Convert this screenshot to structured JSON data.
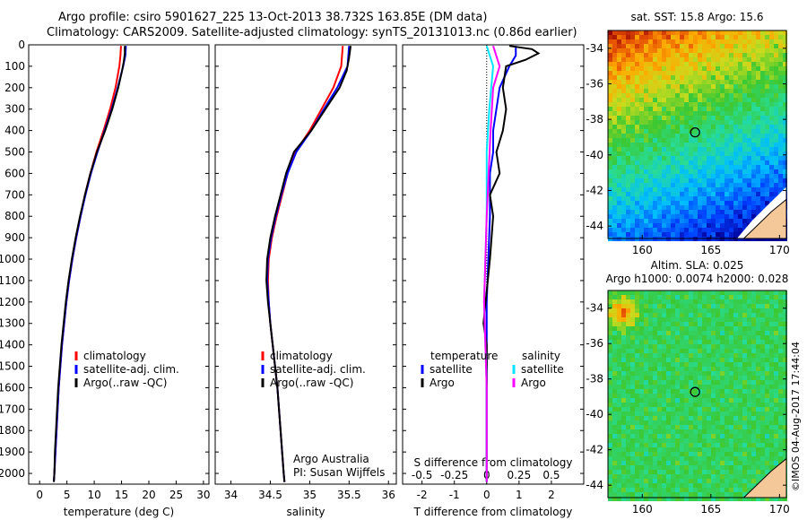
{
  "header": {
    "line1": "Argo profile: csiro 5901627_225 13-Oct-2013 38.732S 163.85E (DM data)",
    "line2": "Climatology: CARS2009. Satellite-adjusted climatology: synTS_20131013.nc (0.86d earlier)"
  },
  "credit": "©IMOS 04-Aug-2017 17:44:04",
  "colors": {
    "climatology": "#ff0000",
    "satellite": "#0000ff",
    "argo": "#000000",
    "sat_salinity": "#00e5ff",
    "argo_salinity": "#ff00ff",
    "land": "#f5c89a"
  },
  "chart_data": [
    {
      "type": "line",
      "panel": "temperature",
      "xlabel": "temperature (deg C)",
      "ylim": [
        2050,
        0
      ],
      "xlim": [
        -2,
        31
      ],
      "yticks": [
        0,
        100,
        200,
        300,
        400,
        500,
        600,
        700,
        800,
        900,
        1000,
        1100,
        1200,
        1300,
        1400,
        1500,
        1600,
        1700,
        1800,
        1900,
        2000
      ],
      "xticks": [
        0,
        5,
        10,
        15,
        20,
        25,
        30
      ],
      "legend": [
        "climatology",
        "satellite-adj. clim.",
        "Argo(..raw -QC)"
      ],
      "series": [
        {
          "name": "climatology",
          "points": [
            [
              14.9,
              5
            ],
            [
              14.8,
              50
            ],
            [
              14.6,
              100
            ],
            [
              13.9,
              200
            ],
            [
              12.9,
              300
            ],
            [
              11.7,
              400
            ],
            [
              10.4,
              500
            ],
            [
              9.3,
              600
            ],
            [
              8.3,
              700
            ],
            [
              7.5,
              800
            ],
            [
              6.7,
              900
            ],
            [
              6.0,
              1000
            ],
            [
              5.4,
              1100
            ],
            [
              4.9,
              1200
            ],
            [
              4.5,
              1300
            ],
            [
              4.1,
              1400
            ],
            [
              3.8,
              1500
            ],
            [
              3.5,
              1600
            ],
            [
              3.3,
              1700
            ],
            [
              3.1,
              1800
            ],
            [
              2.9,
              1900
            ],
            [
              2.7,
              2000
            ],
            [
              2.6,
              2040
            ]
          ]
        },
        {
          "name": "satellite-adj. clim.",
          "points": [
            [
              15.8,
              5
            ],
            [
              15.7,
              50
            ],
            [
              15.3,
              100
            ],
            [
              14.3,
              200
            ],
            [
              13.2,
              300
            ],
            [
              11.9,
              400
            ],
            [
              10.6,
              500
            ],
            [
              9.4,
              600
            ],
            [
              8.4,
              700
            ],
            [
              7.5,
              800
            ],
            [
              6.7,
              900
            ],
            [
              6.0,
              1000
            ],
            [
              5.4,
              1100
            ],
            [
              4.9,
              1200
            ],
            [
              4.5,
              1300
            ],
            [
              4.1,
              1400
            ],
            [
              3.8,
              1500
            ],
            [
              3.5,
              1600
            ],
            [
              3.3,
              1700
            ],
            [
              3.1,
              1800
            ],
            [
              2.9,
              1900
            ],
            [
              2.7,
              2000
            ],
            [
              2.6,
              2040
            ]
          ]
        },
        {
          "name": "Argo(..raw -QC)",
          "points": [
            [
              15.6,
              5
            ],
            [
              15.6,
              40
            ],
            [
              15.4,
              80
            ],
            [
              15.1,
              120
            ],
            [
              14.4,
              200
            ],
            [
              13.3,
              300
            ],
            [
              12.0,
              400
            ],
            [
              10.5,
              500
            ],
            [
              9.3,
              600
            ],
            [
              8.3,
              700
            ],
            [
              7.4,
              800
            ],
            [
              6.6,
              900
            ],
            [
              5.9,
              1000
            ],
            [
              5.3,
              1100
            ],
            [
              4.8,
              1200
            ],
            [
              4.4,
              1300
            ],
            [
              4.0,
              1400
            ],
            [
              3.7,
              1500
            ],
            [
              3.4,
              1600
            ],
            [
              3.2,
              1700
            ],
            [
              3.0,
              1800
            ],
            [
              2.8,
              1900
            ],
            [
              2.7,
              2000
            ],
            [
              2.6,
              2040
            ]
          ]
        }
      ]
    },
    {
      "type": "line",
      "panel": "salinity",
      "xlabel": "salinity",
      "ylim": [
        2050,
        0
      ],
      "xlim": [
        33.8,
        36.1
      ],
      "xticks": [
        34,
        34.5,
        35,
        35.5,
        36
      ],
      "legend": [
        "climatology",
        "satellite-adj. clim.",
        "Argo(..raw -QC)"
      ],
      "annotation": [
        "Argo Australia",
        "PI: Susan Wijffels"
      ],
      "series": [
        {
          "name": "climatology",
          "points": [
            [
              35.42,
              5
            ],
            [
              35.4,
              100
            ],
            [
              35.3,
              200
            ],
            [
              35.15,
              300
            ],
            [
              35.0,
              400
            ],
            [
              34.82,
              500
            ],
            [
              34.72,
              600
            ],
            [
              34.65,
              700
            ],
            [
              34.58,
              800
            ],
            [
              34.52,
              900
            ],
            [
              34.48,
              1000
            ],
            [
              34.47,
              1100
            ],
            [
              34.48,
              1200
            ],
            [
              34.5,
              1300
            ],
            [
              34.53,
              1400
            ],
            [
              34.56,
              1500
            ],
            [
              34.59,
              1600
            ],
            [
              34.61,
              1700
            ],
            [
              34.63,
              1800
            ],
            [
              34.65,
              1900
            ],
            [
              34.67,
              2000
            ],
            [
              34.68,
              2040
            ]
          ]
        },
        {
          "name": "satellite-adj. clim.",
          "points": [
            [
              35.5,
              5
            ],
            [
              35.48,
              100
            ],
            [
              35.35,
              200
            ],
            [
              35.18,
              300
            ],
            [
              35.02,
              400
            ],
            [
              34.83,
              500
            ],
            [
              34.72,
              600
            ],
            [
              34.64,
              700
            ],
            [
              34.57,
              800
            ],
            [
              34.51,
              900
            ],
            [
              34.47,
              1000
            ],
            [
              34.46,
              1100
            ],
            [
              34.48,
              1200
            ],
            [
              34.5,
              1300
            ],
            [
              34.53,
              1400
            ],
            [
              34.56,
              1500
            ],
            [
              34.59,
              1600
            ],
            [
              34.61,
              1700
            ],
            [
              34.63,
              1800
            ],
            [
              34.65,
              1900
            ],
            [
              34.67,
              2000
            ],
            [
              34.68,
              2040
            ]
          ]
        },
        {
          "name": "Argo(..raw -QC)",
          "points": [
            [
              35.52,
              5
            ],
            [
              35.5,
              60
            ],
            [
              35.47,
              120
            ],
            [
              35.38,
              200
            ],
            [
              35.2,
              300
            ],
            [
              35.02,
              400
            ],
            [
              34.8,
              500
            ],
            [
              34.7,
              600
            ],
            [
              34.63,
              700
            ],
            [
              34.56,
              800
            ],
            [
              34.5,
              900
            ],
            [
              34.46,
              1000
            ],
            [
              34.45,
              1100
            ],
            [
              34.47,
              1200
            ],
            [
              34.5,
              1300
            ],
            [
              34.53,
              1400
            ],
            [
              34.56,
              1500
            ],
            [
              34.59,
              1600
            ],
            [
              34.61,
              1700
            ],
            [
              34.63,
              1800
            ],
            [
              34.65,
              1900
            ],
            [
              34.67,
              2000
            ],
            [
              34.68,
              2040
            ]
          ]
        }
      ]
    },
    {
      "type": "line",
      "panel": "difference",
      "xlabel": "T difference from climatology",
      "xlabel2": "S difference from climatology",
      "xlim": [
        -2.6,
        3.0
      ],
      "xticks": [
        -2,
        -1,
        0,
        1,
        2
      ],
      "s_ticks": [
        "-0.5",
        "-0.25",
        "0",
        "0.25",
        "0.5"
      ],
      "ylim": [
        2050,
        0
      ],
      "legend": {
        "temperature_title": "temperature",
        "salinity_title": "salinity",
        "satellite": "satellite",
        "argo": "Argo"
      },
      "series": [
        {
          "name": "temperature satellite",
          "points": [
            [
              0.9,
              5
            ],
            [
              0.9,
              50
            ],
            [
              0.7,
              100
            ],
            [
              0.4,
              200
            ],
            [
              0.3,
              300
            ],
            [
              0.2,
              400
            ],
            [
              0.2,
              500
            ],
            [
              0.1,
              600
            ],
            [
              0.1,
              800
            ],
            [
              0.05,
              1000
            ],
            [
              0.0,
              1200
            ],
            [
              0.0,
              1400
            ],
            [
              0.0,
              1700
            ],
            [
              0.0,
              2040
            ]
          ]
        },
        {
          "name": "temperature Argo",
          "points": [
            [
              0.7,
              5
            ],
            [
              1.4,
              20
            ],
            [
              1.6,
              40
            ],
            [
              1.2,
              70
            ],
            [
              0.6,
              100
            ],
            [
              0.5,
              200
            ],
            [
              0.6,
              300
            ],
            [
              0.5,
              400
            ],
            [
              0.3,
              500
            ],
            [
              0.4,
              600
            ],
            [
              0.1,
              700
            ],
            [
              0.2,
              800
            ],
            [
              0.1,
              1000
            ],
            [
              -0.1,
              1300
            ],
            [
              0.0,
              1400
            ],
            [
              0.0,
              2040
            ]
          ]
        },
        {
          "name": "salinity satellite",
          "points": [
            [
              0.0,
              5
            ],
            [
              0.05,
              100
            ],
            [
              0.02,
              300
            ],
            [
              0.0,
              500
            ],
            [
              0.0,
              800
            ],
            [
              -0.02,
              1200
            ],
            [
              0.0,
              1600
            ],
            [
              0.0,
              2040
            ]
          ]
        },
        {
          "name": "salinity Argo",
          "points": [
            [
              0.05,
              5
            ],
            [
              0.1,
              100
            ],
            [
              0.05,
              200
            ],
            [
              0.03,
              400
            ],
            [
              0.0,
              800
            ],
            [
              -0.02,
              1200
            ],
            [
              0.0,
              1600
            ],
            [
              0.0,
              2040
            ]
          ]
        }
      ]
    },
    {
      "type": "heatmap",
      "panel": "sst-map",
      "title": "sat. SST: 15.8  Argo: 15.6",
      "xticks": [
        "160",
        "165",
        "170"
      ],
      "yticks": [
        "-34",
        "-36",
        "-38",
        "-40",
        "-42",
        "-44"
      ],
      "marker": {
        "lon": 163.85,
        "lat": -38.732
      }
    },
    {
      "type": "heatmap",
      "panel": "sla-map",
      "title": "Altim. SLA: 0.025",
      "subtitle": "Argo h1000: 0.0074  h2000: 0.028",
      "xticks": [
        "160",
        "165",
        "170"
      ],
      "yticks": [
        "-34",
        "-36",
        "-38",
        "-40",
        "-42",
        "-44"
      ],
      "marker": {
        "lon": 163.85,
        "lat": -38.732
      }
    }
  ]
}
